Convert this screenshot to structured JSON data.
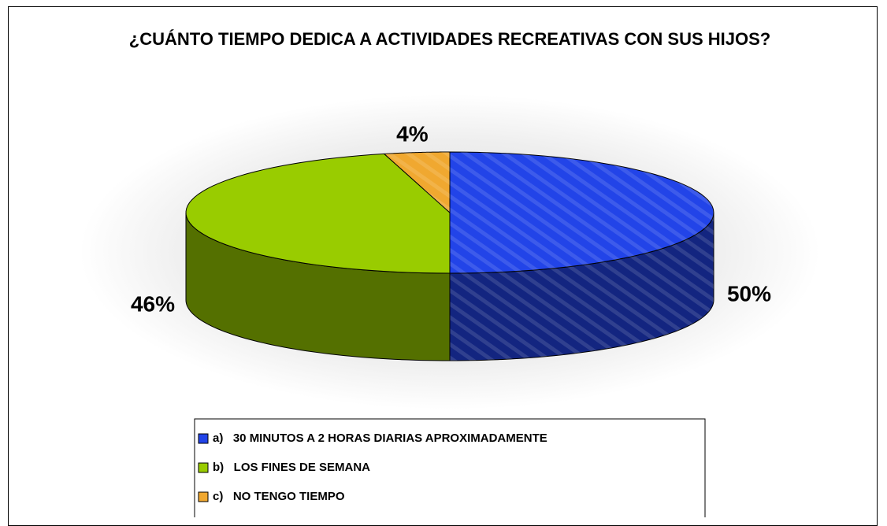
{
  "chart_data": {
    "type": "pie",
    "title": "¿CUÁNTO TIEMPO DEDICA A ACTIVIDADES RECREATIVAS CON SUS HIJOS?",
    "categories": [
      "a)   30 MINUTOS A 2 HORAS DIARIAS APROXIMADAMENTE",
      "b)   LOS FINES DE SEMANA",
      "c)   NO TENGO TIEMPO"
    ],
    "values": [
      50,
      46,
      4
    ],
    "value_labels": [
      "50%",
      "46%",
      "4%"
    ],
    "colors": [
      "#2244e8",
      "#99cc00",
      "#f0a830"
    ],
    "legend": "bottom"
  }
}
